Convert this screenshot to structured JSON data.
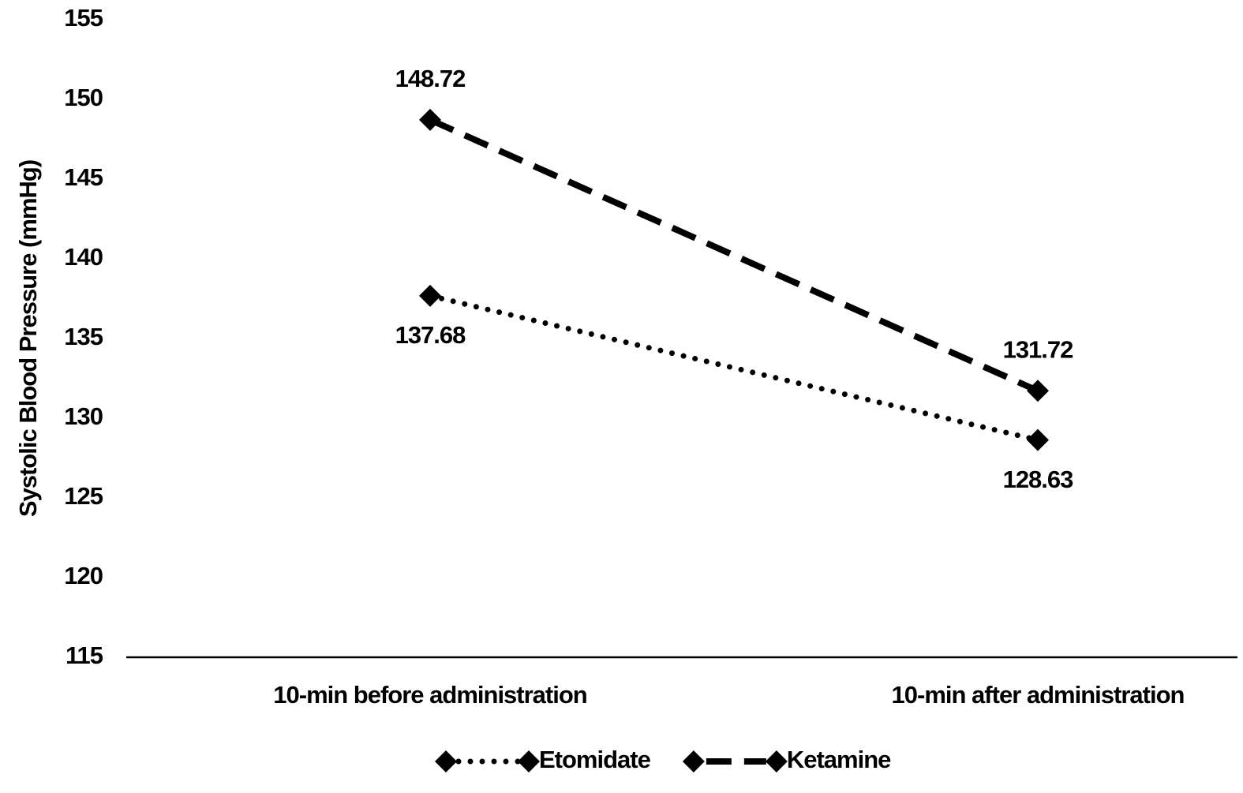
{
  "chart_data": {
    "type": "line",
    "y_label": "Systolic Blood Pressure (mmHg)",
    "categories": [
      "10-min before administration",
      "10-min after administration"
    ],
    "series": [
      {
        "name": "Etomidate",
        "color": "#000000",
        "line_style": "dotted",
        "values": [
          137.68,
          128.63
        ],
        "label_position": "below"
      },
      {
        "name": "Ketamine",
        "color": "#000000",
        "line_style": "dashed",
        "values": [
          148.72,
          131.72
        ],
        "label_position": "above"
      }
    ],
    "ylim": [
      115,
      155
    ],
    "yticks": [
      115,
      120,
      125,
      130,
      135,
      140,
      145,
      150,
      155
    ],
    "grid": false,
    "legend": "bottom"
  }
}
